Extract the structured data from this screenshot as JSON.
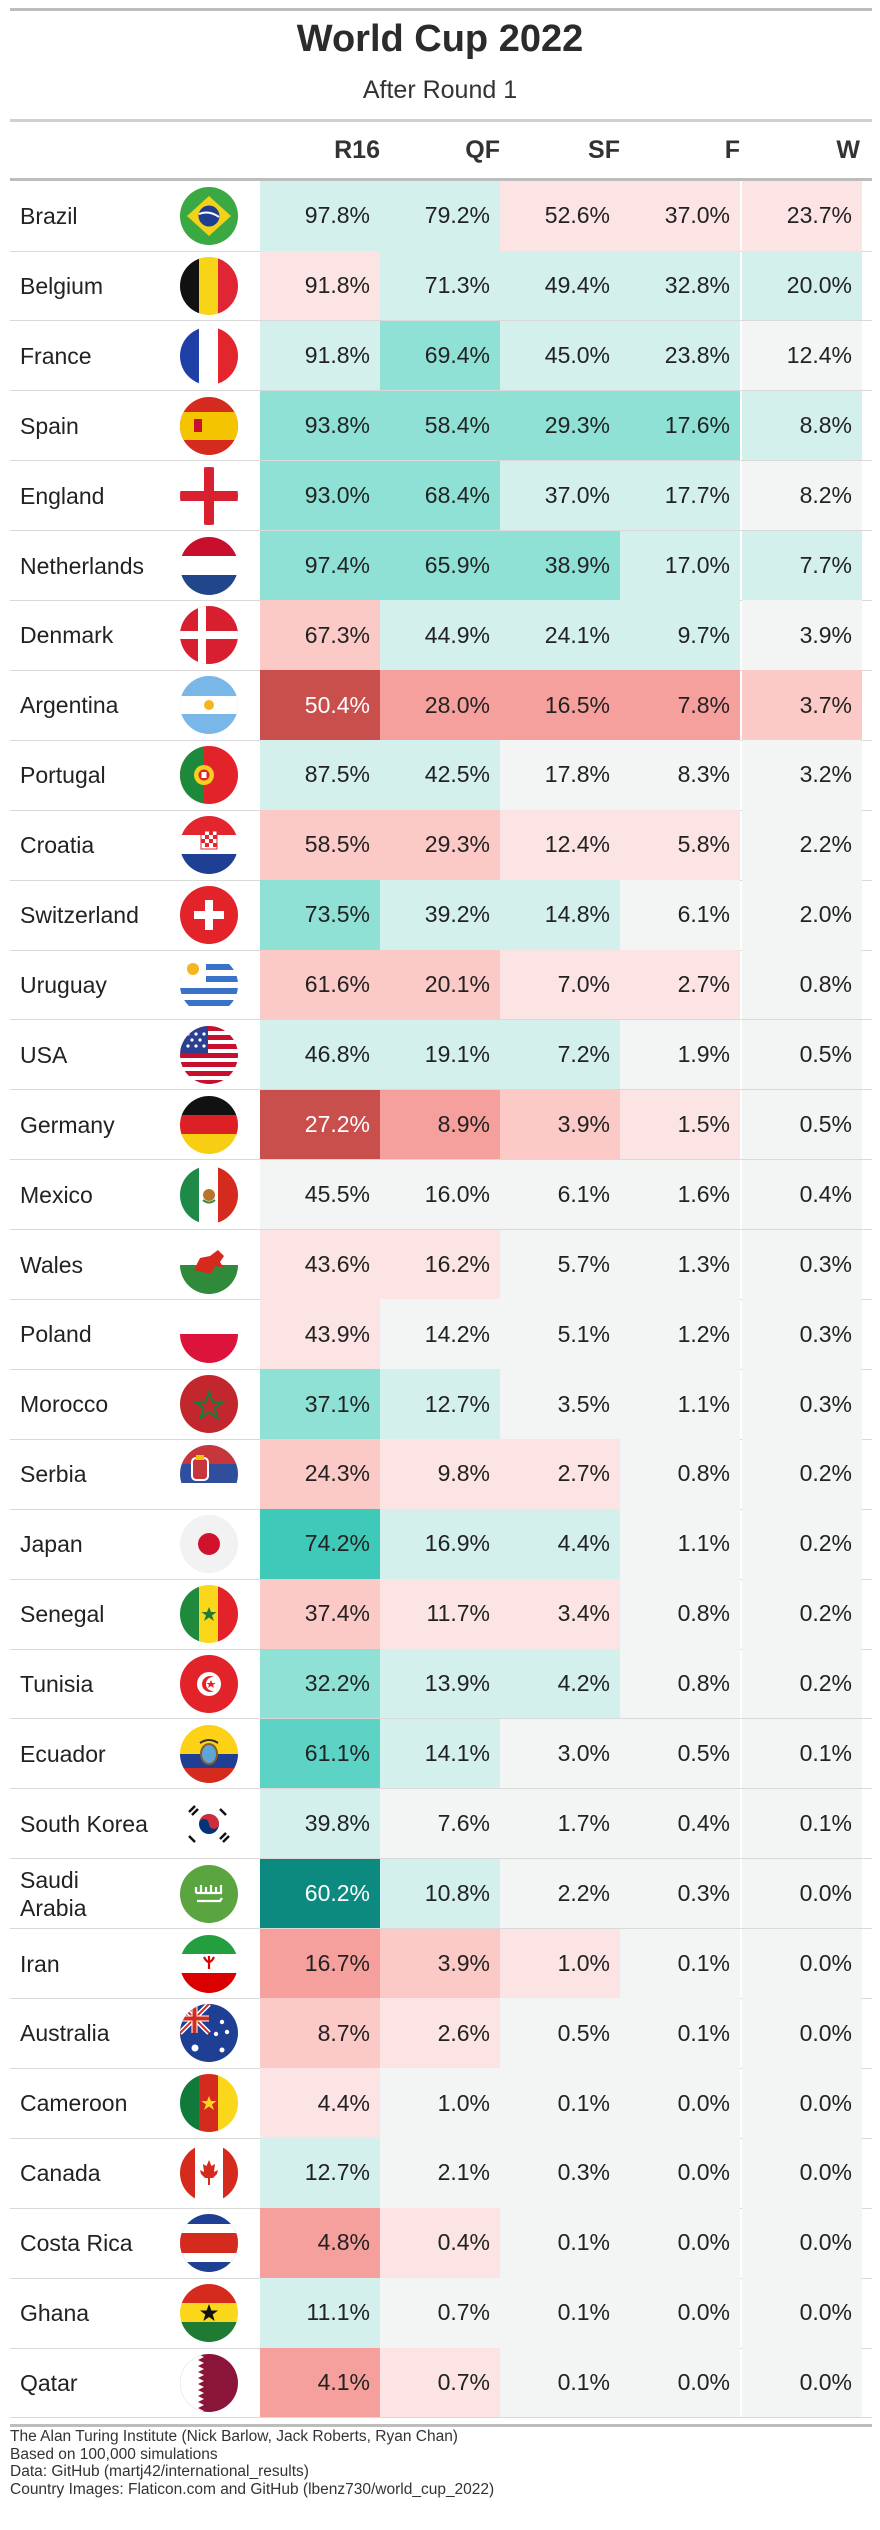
{
  "title": "World Cup 2022",
  "subtitle": "After Round 1",
  "columns": [
    "R16",
    "QF",
    "SF",
    "F",
    "W"
  ],
  "footer": [
    "The Alan Turing Institute (Nick Barlow, Jack Roberts, Ryan Chan)",
    "Based on 100,000 simulations",
    "Data: GitHub (martj42/international_results)",
    "Country Images: Flaticon.com and GitHub (lbenz730/world_cup_2022)"
  ],
  "colors": {
    "strong_teal": "#0f8a80",
    "teal": "#5fd3c6",
    "light_teal": "#d8f1ee",
    "neutral": "#f4f4f4",
    "light_red": "#fbdcdc",
    "red": "#f59a98",
    "strong_red": "#c94c4c"
  },
  "chart_data": {
    "type": "table",
    "title": "World Cup 2022",
    "subtitle": "After Round 1",
    "columns": [
      "R16",
      "QF",
      "SF",
      "F",
      "W"
    ],
    "rows": [
      {
        "team": "Brazil",
        "flag": "brazil-flag-icon",
        "values": [
          "97.8%",
          "79.2%",
          "52.6%",
          "37.0%",
          "23.7%"
        ],
        "shade": [
          1,
          1,
          -1,
          -1,
          -1
        ]
      },
      {
        "team": "Belgium",
        "flag": "belgium-flag-icon",
        "values": [
          "91.8%",
          "71.3%",
          "49.4%",
          "32.8%",
          "20.0%"
        ],
        "shade": [
          -1,
          1,
          1,
          1,
          1
        ]
      },
      {
        "team": "France",
        "flag": "france-flag-icon",
        "values": [
          "91.8%",
          "69.4%",
          "45.0%",
          "23.8%",
          "12.4%"
        ],
        "shade": [
          1,
          2,
          1,
          1,
          0
        ]
      },
      {
        "team": "Spain",
        "flag": "spain-flag-icon",
        "values": [
          "93.8%",
          "58.4%",
          "29.3%",
          "17.6%",
          "8.8%"
        ],
        "shade": [
          2,
          2,
          2,
          2,
          1
        ]
      },
      {
        "team": "England",
        "flag": "england-flag-icon",
        "values": [
          "93.0%",
          "68.4%",
          "37.0%",
          "17.7%",
          "8.2%"
        ],
        "shade": [
          2,
          2,
          1,
          1,
          0
        ]
      },
      {
        "team": "Netherlands",
        "flag": "netherlands-flag-icon",
        "values": [
          "97.4%",
          "65.9%",
          "38.9%",
          "17.0%",
          "7.7%"
        ],
        "shade": [
          2,
          2,
          2,
          1,
          1
        ]
      },
      {
        "team": "Denmark",
        "flag": "denmark-flag-icon",
        "values": [
          "67.3%",
          "44.9%",
          "24.1%",
          "9.7%",
          "3.9%"
        ],
        "shade": [
          -2,
          1,
          1,
          1,
          0
        ]
      },
      {
        "team": "Argentina",
        "flag": "argentina-flag-icon",
        "values": [
          "50.4%",
          "28.0%",
          "16.5%",
          "7.8%",
          "3.7%"
        ],
        "shade": [
          -4,
          -3,
          -3,
          -3,
          -2
        ]
      },
      {
        "team": "Portugal",
        "flag": "portugal-flag-icon",
        "values": [
          "87.5%",
          "42.5%",
          "17.8%",
          "8.3%",
          "3.2%"
        ],
        "shade": [
          1,
          1,
          0,
          0,
          0
        ]
      },
      {
        "team": "Croatia",
        "flag": "croatia-flag-icon",
        "values": [
          "58.5%",
          "29.3%",
          "12.4%",
          "5.8%",
          "2.2%"
        ],
        "shade": [
          -2,
          -2,
          -1,
          -1,
          0
        ]
      },
      {
        "team": "Switzerland",
        "flag": "switzerland-flag-icon",
        "values": [
          "73.5%",
          "39.2%",
          "14.8%",
          "6.1%",
          "2.0%"
        ],
        "shade": [
          2,
          1,
          1,
          0,
          0
        ]
      },
      {
        "team": "Uruguay",
        "flag": "uruguay-flag-icon",
        "values": [
          "61.6%",
          "20.1%",
          "7.0%",
          "2.7%",
          "0.8%"
        ],
        "shade": [
          -2,
          -2,
          -1,
          -1,
          0
        ]
      },
      {
        "team": "USA",
        "flag": "usa-flag-icon",
        "values": [
          "46.8%",
          "19.1%",
          "7.2%",
          "1.9%",
          "0.5%"
        ],
        "shade": [
          1,
          1,
          1,
          0,
          0
        ]
      },
      {
        "team": "Germany",
        "flag": "germany-flag-icon",
        "values": [
          "27.2%",
          "8.9%",
          "3.9%",
          "1.5%",
          "0.5%"
        ],
        "shade": [
          -4,
          -3,
          -2,
          -1,
          0
        ]
      },
      {
        "team": "Mexico",
        "flag": "mexico-flag-icon",
        "values": [
          "45.5%",
          "16.0%",
          "6.1%",
          "1.6%",
          "0.4%"
        ],
        "shade": [
          0,
          0,
          0,
          0,
          0
        ]
      },
      {
        "team": "Wales",
        "flag": "wales-flag-icon",
        "values": [
          "43.6%",
          "16.2%",
          "5.7%",
          "1.3%",
          "0.3%"
        ],
        "shade": [
          -1,
          -1,
          0,
          0,
          0
        ]
      },
      {
        "team": "Poland",
        "flag": "poland-flag-icon",
        "values": [
          "43.9%",
          "14.2%",
          "5.1%",
          "1.2%",
          "0.3%"
        ],
        "shade": [
          -1,
          0,
          0,
          0,
          0
        ]
      },
      {
        "team": "Morocco",
        "flag": "morocco-flag-icon",
        "values": [
          "37.1%",
          "12.7%",
          "3.5%",
          "1.1%",
          "0.3%"
        ],
        "shade": [
          2,
          1,
          0,
          0,
          0
        ]
      },
      {
        "team": "Serbia",
        "flag": "serbia-flag-icon",
        "values": [
          "24.3%",
          "9.8%",
          "2.7%",
          "0.8%",
          "0.2%"
        ],
        "shade": [
          -2,
          -1,
          -1,
          0,
          0
        ]
      },
      {
        "team": "Japan",
        "flag": "japan-flag-icon",
        "values": [
          "74.2%",
          "16.9%",
          "4.4%",
          "1.1%",
          "0.2%"
        ],
        "shade": [
          4,
          1,
          1,
          0,
          0
        ]
      },
      {
        "team": "Senegal",
        "flag": "senegal-flag-icon",
        "values": [
          "37.4%",
          "11.7%",
          "3.4%",
          "0.8%",
          "0.2%"
        ],
        "shade": [
          -2,
          -1,
          -1,
          0,
          0
        ]
      },
      {
        "team": "Tunisia",
        "flag": "tunisia-flag-icon",
        "values": [
          "32.2%",
          "13.9%",
          "4.2%",
          "0.8%",
          "0.2%"
        ],
        "shade": [
          2,
          1,
          1,
          0,
          0
        ]
      },
      {
        "team": "Ecuador",
        "flag": "ecuador-flag-icon",
        "values": [
          "61.1%",
          "14.1%",
          "3.0%",
          "0.5%",
          "0.1%"
        ],
        "shade": [
          3,
          1,
          0,
          0,
          0
        ]
      },
      {
        "team": "South Korea",
        "flag": "south-korea-flag-icon",
        "values": [
          "39.8%",
          "7.6%",
          "1.7%",
          "0.4%",
          "0.1%"
        ],
        "shade": [
          1,
          0,
          0,
          0,
          0
        ]
      },
      {
        "team": "Saudi Arabia",
        "flag": "saudi-arabia-flag-icon",
        "values": [
          "60.2%",
          "10.8%",
          "2.2%",
          "0.3%",
          "0.0%"
        ],
        "shade": [
          5,
          1,
          0,
          0,
          0
        ]
      },
      {
        "team": "Iran",
        "flag": "iran-flag-icon",
        "values": [
          "16.7%",
          "3.9%",
          "1.0%",
          "0.1%",
          "0.0%"
        ],
        "shade": [
          -3,
          -2,
          -1,
          0,
          0
        ]
      },
      {
        "team": "Australia",
        "flag": "australia-flag-icon",
        "values": [
          "8.7%",
          "2.6%",
          "0.5%",
          "0.1%",
          "0.0%"
        ],
        "shade": [
          -2,
          -1,
          0,
          0,
          0
        ]
      },
      {
        "team": "Cameroon",
        "flag": "cameroon-flag-icon",
        "values": [
          "4.4%",
          "1.0%",
          "0.1%",
          "0.0%",
          "0.0%"
        ],
        "shade": [
          -1,
          0,
          0,
          0,
          0
        ]
      },
      {
        "team": "Canada",
        "flag": "canada-flag-icon",
        "values": [
          "12.7%",
          "2.1%",
          "0.3%",
          "0.0%",
          "0.0%"
        ],
        "shade": [
          1,
          0,
          0,
          0,
          0
        ]
      },
      {
        "team": "Costa Rica",
        "flag": "costa-rica-flag-icon",
        "values": [
          "4.8%",
          "0.4%",
          "0.1%",
          "0.0%",
          "0.0%"
        ],
        "shade": [
          -3,
          -1,
          0,
          0,
          0
        ]
      },
      {
        "team": "Ghana",
        "flag": "ghana-flag-icon",
        "values": [
          "11.1%",
          "0.7%",
          "0.1%",
          "0.0%",
          "0.0%"
        ],
        "shade": [
          1,
          0,
          0,
          0,
          0
        ]
      },
      {
        "team": "Qatar",
        "flag": "qatar-flag-icon",
        "values": [
          "4.1%",
          "0.7%",
          "0.1%",
          "0.0%",
          "0.0%"
        ],
        "shade": [
          -3,
          -1,
          0,
          0,
          0
        ]
      }
    ]
  }
}
